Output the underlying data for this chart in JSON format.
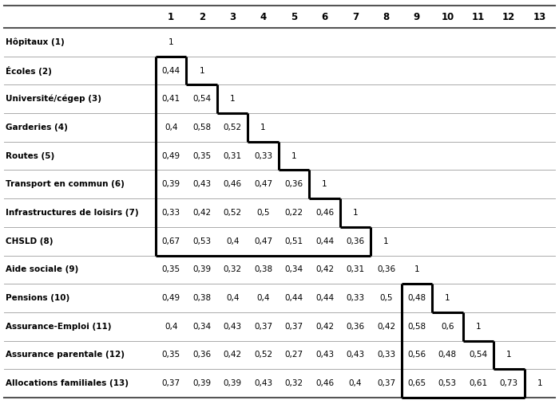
{
  "rows": [
    "Hôpitaux (1)",
    "Écoles (2)",
    "Université/cégep (3)",
    "Garderies (4)",
    "Routes (5)",
    "Transport en commun (6)",
    "Infrastructures de loisirs (7)",
    "CHSLD (8)",
    "Aide sociale (9)",
    "Pensions (10)",
    "Assurance-Emploi (11)",
    "Assurance parentale (12)",
    "Allocations familiales (13)"
  ],
  "col_headers": [
    "1",
    "2",
    "3",
    "4",
    "5",
    "6",
    "7",
    "8",
    "9",
    "10",
    "11",
    "12",
    "13"
  ],
  "data": [
    [
      "1",
      "",
      "",
      "",
      "",
      "",
      "",
      "",
      "",
      "",
      "",
      "",
      ""
    ],
    [
      "0,44",
      "1",
      "",
      "",
      "",
      "",
      "",
      "",
      "",
      "",
      "",
      "",
      ""
    ],
    [
      "0,41",
      "0,54",
      "1",
      "",
      "",
      "",
      "",
      "",
      "",
      "",
      "",
      "",
      ""
    ],
    [
      "0,4",
      "0,58",
      "0,52",
      "1",
      "",
      "",
      "",
      "",
      "",
      "",
      "",
      "",
      ""
    ],
    [
      "0,49",
      "0,35",
      "0,31",
      "0,33",
      "1",
      "",
      "",
      "",
      "",
      "",
      "",
      "",
      ""
    ],
    [
      "0,39",
      "0,43",
      "0,46",
      "0,47",
      "0,36",
      "1",
      "",
      "",
      "",
      "",
      "",
      "",
      ""
    ],
    [
      "0,33",
      "0,42",
      "0,52",
      "0,5",
      "0,22",
      "0,46",
      "1",
      "",
      "",
      "",
      "",
      "",
      ""
    ],
    [
      "0,67",
      "0,53",
      "0,4",
      "0,47",
      "0,51",
      "0,44",
      "0,36",
      "1",
      "",
      "",
      "",
      "",
      ""
    ],
    [
      "0,35",
      "0,39",
      "0,32",
      "0,38",
      "0,34",
      "0,42",
      "0,31",
      "0,36",
      "1",
      "",
      "",
      "",
      ""
    ],
    [
      "0,49",
      "0,38",
      "0,4",
      "0,4",
      "0,44",
      "0,44",
      "0,33",
      "0,5",
      "0,48",
      "1",
      "",
      "",
      ""
    ],
    [
      "0,4",
      "0,34",
      "0,43",
      "0,37",
      "0,37",
      "0,42",
      "0,36",
      "0,42",
      "0,58",
      "0,6",
      "1",
      "",
      ""
    ],
    [
      "0,35",
      "0,36",
      "0,42",
      "0,52",
      "0,27",
      "0,43",
      "0,43",
      "0,33",
      "0,56",
      "0,48",
      "0,54",
      "1",
      ""
    ],
    [
      "0,37",
      "0,39",
      "0,39",
      "0,43",
      "0,32",
      "0,46",
      "0,4",
      "0,37",
      "0,65",
      "0,53",
      "0,61",
      "0,73",
      "1"
    ]
  ],
  "bg_color": "#ffffff",
  "text_color": "#000000",
  "sep_line_color": "#aaaaaa",
  "box_color": "#000000",
  "top_line_color": "#888888",
  "bottom_line_color": "#888888"
}
